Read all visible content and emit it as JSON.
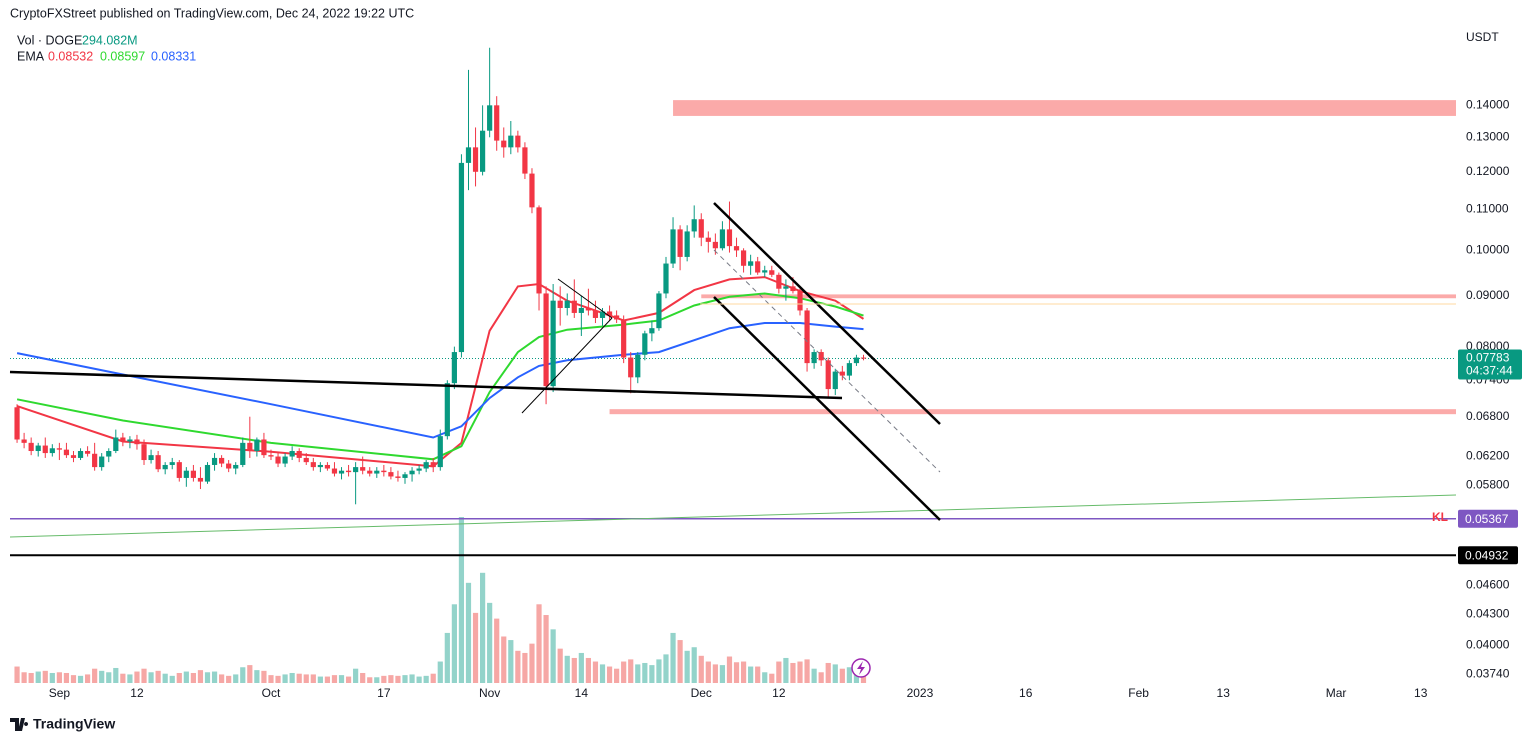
{
  "chart_data": {
    "type": "candlestick",
    "title": "CryptoFXStreet published on TradingView.com, Dec 24, 2022 19:22 UTC",
    "axis_unit": "USDT",
    "log_scale": true,
    "grid": false,
    "up_color": "#089981",
    "down_color": "#f23645",
    "volume_up_color": "#93d3ca",
    "volume_down_color": "#f6a7a5",
    "volume_name": "Vol · DOGE",
    "volume_value_label": "294.082M",
    "x": [
      "2022-08-26",
      "2022-08-27",
      "2022-08-28",
      "2022-08-29",
      "2022-08-30",
      "2022-08-31",
      "2022-09-01",
      "2022-09-02",
      "2022-09-03",
      "2022-09-04",
      "2022-09-05",
      "2022-09-06",
      "2022-09-07",
      "2022-09-08",
      "2022-09-09",
      "2022-09-10",
      "2022-09-11",
      "2022-09-12",
      "2022-09-13",
      "2022-09-14",
      "2022-09-15",
      "2022-09-16",
      "2022-09-17",
      "2022-09-18",
      "2022-09-19",
      "2022-09-20",
      "2022-09-21",
      "2022-09-22",
      "2022-09-23",
      "2022-09-24",
      "2022-09-25",
      "2022-09-26",
      "2022-09-27",
      "2022-09-28",
      "2022-09-29",
      "2022-09-30",
      "2022-10-01",
      "2022-10-02",
      "2022-10-03",
      "2022-10-04",
      "2022-10-05",
      "2022-10-06",
      "2022-10-07",
      "2022-10-08",
      "2022-10-09",
      "2022-10-10",
      "2022-10-11",
      "2022-10-12",
      "2022-10-13",
      "2022-10-14",
      "2022-10-15",
      "2022-10-16",
      "2022-10-17",
      "2022-10-18",
      "2022-10-19",
      "2022-10-20",
      "2022-10-21",
      "2022-10-22",
      "2022-10-23",
      "2022-10-24",
      "2022-10-25",
      "2022-10-26",
      "2022-10-27",
      "2022-10-28",
      "2022-10-29",
      "2022-10-30",
      "2022-10-31",
      "2022-11-01",
      "2022-11-02",
      "2022-11-03",
      "2022-11-04",
      "2022-11-05",
      "2022-11-06",
      "2022-11-07",
      "2022-11-08",
      "2022-11-09",
      "2022-11-10",
      "2022-11-11",
      "2022-11-12",
      "2022-11-13",
      "2022-11-14",
      "2022-11-15",
      "2022-11-16",
      "2022-11-17",
      "2022-11-18",
      "2022-11-19",
      "2022-11-20",
      "2022-11-21",
      "2022-11-22",
      "2022-11-23",
      "2022-11-24",
      "2022-11-25",
      "2022-11-26",
      "2022-11-27",
      "2022-11-28",
      "2022-11-29",
      "2022-11-30",
      "2022-12-01",
      "2022-12-02",
      "2022-12-03",
      "2022-12-04",
      "2022-12-05",
      "2022-12-06",
      "2022-12-07",
      "2022-12-08",
      "2022-12-09",
      "2022-12-10",
      "2022-12-11",
      "2022-12-12",
      "2022-12-13",
      "2022-12-14",
      "2022-12-15",
      "2022-12-16",
      "2022-12-17",
      "2022-12-18",
      "2022-12-19",
      "2022-12-20",
      "2022-12-21",
      "2022-12-22",
      "2022-12-23",
      "2022-12-24"
    ],
    "open": [
      0.0695,
      0.0645,
      0.064,
      0.0628,
      0.0636,
      0.0625,
      0.0632,
      0.063,
      0.0622,
      0.0618,
      0.0628,
      0.0624,
      0.0605,
      0.062,
      0.0628,
      0.0648,
      0.0642,
      0.0645,
      0.0638,
      0.0615,
      0.0622,
      0.0602,
      0.0608,
      0.0612,
      0.059,
      0.06,
      0.059,
      0.0585,
      0.0608,
      0.0618,
      0.061,
      0.0603,
      0.0608,
      0.064,
      0.0628,
      0.0645,
      0.0622,
      0.062,
      0.061,
      0.062,
      0.0628,
      0.0618,
      0.0612,
      0.0605,
      0.0608,
      0.0603,
      0.0596,
      0.06,
      0.0598,
      0.0605,
      0.06,
      0.0596,
      0.06,
      0.0598,
      0.0592,
      0.059,
      0.0595,
      0.06,
      0.0603,
      0.0612,
      0.0605,
      0.065,
      0.0735,
      0.079,
      0.1225,
      0.127,
      0.12,
      0.132,
      0.14,
      0.129,
      0.127,
      0.1305,
      0.127,
      0.1195,
      0.1105,
      0.0905,
      0.073,
      0.089,
      0.0875,
      0.089,
      0.0865,
      0.0875,
      0.087,
      0.0855,
      0.0868,
      0.086,
      0.0852,
      0.078,
      0.0745,
      0.0785,
      0.0825,
      0.0835,
      0.0905,
      0.097,
      0.105,
      0.0985,
      0.1045,
      0.1075,
      0.103,
      0.102,
      0.1005,
      0.105,
      0.101,
      0.1,
      0.0965,
      0.0975,
      0.095,
      0.0955,
      0.0945,
      0.0915,
      0.092,
      0.091,
      0.087,
      0.077,
      0.079,
      0.0775,
      0.0725,
      0.0755,
      0.0748,
      0.077,
      0.078
    ],
    "high": [
      0.07,
      0.0655,
      0.0648,
      0.064,
      0.0648,
      0.0638,
      0.064,
      0.064,
      0.0628,
      0.0632,
      0.0635,
      0.064,
      0.0625,
      0.0632,
      0.066,
      0.0655,
      0.065,
      0.0652,
      0.0645,
      0.063,
      0.0628,
      0.0612,
      0.0618,
      0.0615,
      0.0605,
      0.0608,
      0.0605,
      0.0612,
      0.0625,
      0.0622,
      0.0615,
      0.0612,
      0.0648,
      0.068,
      0.0648,
      0.0655,
      0.063,
      0.0625,
      0.0625,
      0.0635,
      0.0632,
      0.0625,
      0.0618,
      0.0612,
      0.0612,
      0.0612,
      0.0605,
      0.0608,
      0.0612,
      0.062,
      0.0605,
      0.0605,
      0.0608,
      0.0605,
      0.06,
      0.0598,
      0.0605,
      0.0608,
      0.0615,
      0.0618,
      0.066,
      0.074,
      0.08,
      0.125,
      0.152,
      0.133,
      0.14,
      0.16,
      0.143,
      0.133,
      0.135,
      0.132,
      0.1285,
      0.121,
      0.111,
      0.092,
      0.0925,
      0.092,
      0.0905,
      0.0935,
      0.09,
      0.0915,
      0.089,
      0.0875,
      0.088,
      0.087,
      0.086,
      0.079,
      0.079,
      0.083,
      0.085,
      0.091,
      0.0985,
      0.108,
      0.106,
      0.106,
      0.111,
      0.109,
      0.1045,
      0.104,
      0.107,
      0.112,
      0.103,
      0.1005,
      0.099,
      0.0985,
      0.0965,
      0.0965,
      0.095,
      0.0935,
      0.094,
      0.0915,
      0.0875,
      0.0795,
      0.0795,
      0.078,
      0.076,
      0.0765,
      0.0775,
      0.0785,
      0.0785
    ],
    "low": [
      0.064,
      0.0632,
      0.0622,
      0.062,
      0.0618,
      0.062,
      0.0615,
      0.0618,
      0.0612,
      0.0615,
      0.062,
      0.06,
      0.06,
      0.0612,
      0.0625,
      0.0635,
      0.0632,
      0.063,
      0.0608,
      0.061,
      0.0598,
      0.0595,
      0.0602,
      0.0585,
      0.0578,
      0.0585,
      0.0575,
      0.0582,
      0.06,
      0.0605,
      0.0598,
      0.0595,
      0.0605,
      0.0618,
      0.062,
      0.0618,
      0.0615,
      0.0605,
      0.0605,
      0.0615,
      0.0612,
      0.0608,
      0.06,
      0.0598,
      0.06,
      0.0592,
      0.0588,
      0.0592,
      0.0555,
      0.0595,
      0.0592,
      0.059,
      0.0592,
      0.0588,
      0.0585,
      0.0582,
      0.0585,
      0.0595,
      0.0598,
      0.0598,
      0.06,
      0.0645,
      0.0725,
      0.078,
      0.115,
      0.116,
      0.119,
      0.13,
      0.126,
      0.124,
      0.125,
      0.1255,
      0.118,
      0.109,
      0.087,
      0.07,
      0.072,
      0.084,
      0.086,
      0.0855,
      0.082,
      0.086,
      0.0845,
      0.084,
      0.085,
      0.0845,
      0.077,
      0.0718,
      0.0735,
      0.0775,
      0.081,
      0.083,
      0.0895,
      0.096,
      0.0955,
      0.0975,
      0.103,
      0.101,
      0.0995,
      0.099,
      0.1,
      0.0995,
      0.0985,
      0.095,
      0.0945,
      0.0945,
      0.094,
      0.094,
      0.0905,
      0.089,
      0.0905,
      0.086,
      0.0755,
      0.076,
      0.0765,
      0.071,
      0.0715,
      0.074,
      0.074,
      0.0765,
      0.0775
    ],
    "close": [
      0.0645,
      0.064,
      0.0628,
      0.0636,
      0.0625,
      0.0632,
      0.063,
      0.0622,
      0.0618,
      0.0628,
      0.0624,
      0.0605,
      0.062,
      0.0628,
      0.0648,
      0.0642,
      0.0645,
      0.0638,
      0.0615,
      0.0622,
      0.0602,
      0.0608,
      0.0612,
      0.059,
      0.06,
      0.059,
      0.0585,
      0.0608,
      0.0618,
      0.061,
      0.0603,
      0.0608,
      0.064,
      0.0628,
      0.0645,
      0.0622,
      0.062,
      0.061,
      0.062,
      0.0628,
      0.0618,
      0.0612,
      0.0605,
      0.0608,
      0.0603,
      0.0596,
      0.06,
      0.0598,
      0.0605,
      0.06,
      0.0596,
      0.06,
      0.0598,
      0.0592,
      0.059,
      0.0595,
      0.06,
      0.0603,
      0.0612,
      0.0605,
      0.065,
      0.0735,
      0.079,
      0.1225,
      0.127,
      0.12,
      0.132,
      0.14,
      0.129,
      0.127,
      0.1305,
      0.127,
      0.1195,
      0.1105,
      0.0905,
      0.073,
      0.089,
      0.0875,
      0.089,
      0.0865,
      0.0875,
      0.087,
      0.0855,
      0.0868,
      0.086,
      0.0852,
      0.078,
      0.0745,
      0.0785,
      0.0825,
      0.0835,
      0.0905,
      0.097,
      0.105,
      0.0985,
      0.1045,
      0.1075,
      0.103,
      0.102,
      0.1005,
      0.105,
      0.101,
      0.1,
      0.0965,
      0.0975,
      0.095,
      0.0955,
      0.0945,
      0.0915,
      0.092,
      0.091,
      0.087,
      0.077,
      0.079,
      0.0775,
      0.0725,
      0.0755,
      0.0748,
      0.077,
      0.078,
      0.07783
    ],
    "volume": [
      230,
      150,
      140,
      160,
      170,
      140,
      150,
      140,
      110,
      100,
      120,
      200,
      170,
      150,
      210,
      130,
      120,
      160,
      200,
      150,
      170,
      130,
      100,
      140,
      160,
      140,
      180,
      150,
      160,
      120,
      100,
      120,
      220,
      250,
      180,
      170,
      110,
      100,
      120,
      140,
      130,
      120,
      120,
      90,
      90,
      110,
      110,
      90,
      200,
      140,
      80,
      80,
      100,
      110,
      100,
      110,
      120,
      90,
      100,
      130,
      300,
      700,
      1100,
      2320,
      1400,
      980,
      1540,
      1120,
      900,
      650,
      600,
      450,
      420,
      550,
      1100,
      950,
      750,
      480,
      380,
      350,
      420,
      350,
      300,
      260,
      230,
      200,
      300,
      330,
      260,
      280,
      250,
      330,
      400,
      700,
      600,
      450,
      500,
      380,
      300,
      260,
      250,
      370,
      290,
      300,
      230,
      230,
      150,
      130,
      300,
      350,
      280,
      300,
      330,
      200,
      150,
      280,
      260,
      200,
      220,
      230,
      294.082
    ],
    "last_label": "0.07783",
    "countdown": "04:37:44",
    "ema": {
      "label": "EMA",
      "x": [
        "2022-08-26",
        "2022-09-10",
        "2022-10-01",
        "2022-10-24",
        "2022-10-28",
        "2022-11-01",
        "2022-11-05",
        "2022-11-08",
        "2022-11-12",
        "2022-11-20",
        "2022-11-25",
        "2022-11-30",
        "2022-12-05",
        "2022-12-10",
        "2022-12-15",
        "2022-12-20",
        "2022-12-24"
      ],
      "series": [
        {
          "color": "#f23645",
          "value_label": "0.08532",
          "values": [
            0.0697,
            0.0642,
            0.0627,
            0.0606,
            0.064,
            0.083,
            0.092,
            0.0925,
            0.089,
            0.085,
            0.0865,
            0.0912,
            0.0935,
            0.094,
            0.091,
            0.089,
            0.08532
          ]
        },
        {
          "color": "#2fd92f",
          "value_label": "0.08597",
          "values": [
            0.0708,
            0.0674,
            0.064,
            0.0616,
            0.0635,
            0.072,
            0.079,
            0.0818,
            0.0832,
            0.0842,
            0.085,
            0.088,
            0.0898,
            0.0905,
            0.0895,
            0.0878,
            0.08597
          ]
        },
        {
          "color": "#2962ff",
          "value_label": "0.08331",
          "values": [
            0.0788,
            0.075,
            0.07,
            0.0648,
            0.0665,
            0.071,
            0.0745,
            0.0765,
            0.0775,
            0.0785,
            0.079,
            0.0812,
            0.0835,
            0.0845,
            0.0845,
            0.0838,
            0.08331
          ]
        }
      ]
    },
    "zones": [
      {
        "from": "2022-11-27",
        "low": 0.1366,
        "high": 0.1417
      },
      {
        "from": "2022-12-01",
        "low": 0.0895,
        "high": 0.0903
      },
      {
        "from": "2022-11-18",
        "low": 0.0684,
        "high": 0.0692
      }
    ],
    "zone_color": "#fbaaa9",
    "levels": [
      {
        "name": "KL",
        "value": 0.05367,
        "value_label": "0.05367",
        "color": "#7e57c2"
      },
      {
        "value": 0.04932,
        "value_label": "0.04932",
        "color": "#000000"
      }
    ],
    "xlim": [
      "2022-08-25",
      "2023-03-18"
    ],
    "ylim": [
      0.0365,
      0.1648
    ],
    "xticks": [
      {
        "value": "2022-09-01",
        "label": "Sep"
      },
      {
        "value": "2022-09-12",
        "label": "12"
      },
      {
        "value": "2022-10-01",
        "label": "Oct"
      },
      {
        "value": "2022-10-17",
        "label": "17"
      },
      {
        "value": "2022-11-01",
        "label": "Nov"
      },
      {
        "value": "2022-11-14",
        "label": "14"
      },
      {
        "value": "2022-12-01",
        "label": "Dec"
      },
      {
        "value": "2022-12-12",
        "label": "12"
      },
      {
        "value": "2023-01-01",
        "label": "2023"
      },
      {
        "value": "2023-01-16",
        "label": "16"
      },
      {
        "value": "2023-02-01",
        "label": "Feb"
      },
      {
        "value": "2023-02-13",
        "label": "13"
      },
      {
        "value": "2023-03-01",
        "label": "Mar"
      },
      {
        "value": "2023-03-13",
        "label": "13"
      }
    ],
    "yticks": [
      {
        "value": 0.14,
        "label": "0.14000"
      },
      {
        "value": 0.13,
        "label": "0.13000"
      },
      {
        "value": 0.12,
        "label": "0.12000"
      },
      {
        "value": 0.11,
        "label": "0.11000"
      },
      {
        "value": 0.1,
        "label": "0.10000"
      },
      {
        "value": 0.09,
        "label": "0.09000"
      },
      {
        "value": 0.08,
        "label": "0.08000"
      },
      {
        "value": 0.074,
        "label": "0.07400"
      },
      {
        "value": 0.068,
        "label": "0.06800"
      },
      {
        "value": 0.062,
        "label": "0.06200"
      },
      {
        "value": 0.058,
        "label": "0.05800"
      },
      {
        "value": 0.046,
        "label": "0.04600"
      },
      {
        "value": 0.043,
        "label": "0.04300"
      },
      {
        "value": 0.04,
        "label": "0.04000"
      },
      {
        "value": 0.0374,
        "label": "0.03740"
      }
    ],
    "footer": "TradingView"
  }
}
